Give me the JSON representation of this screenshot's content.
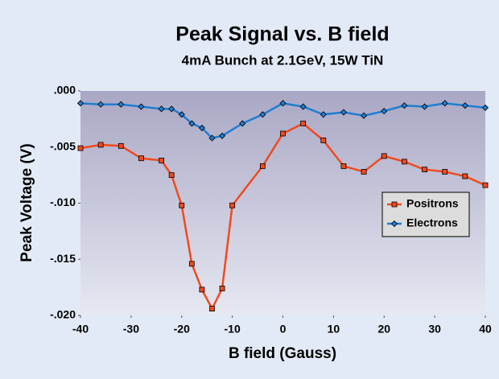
{
  "chart_data": {
    "type": "line",
    "title": "Peak Signal vs. B field",
    "subtitle": "4mA Bunch at 2.1GeV,  15W TiN",
    "xlabel": "B field (Gauss)",
    "ylabel": "Peak Voltage (V)",
    "xlim": [
      -40,
      40
    ],
    "xticks": [
      -40,
      -30,
      -20,
      -10,
      0,
      10,
      20,
      30,
      40
    ],
    "ylim": [
      -0.02,
      0
    ],
    "yticks": [
      {
        "value": 0,
        "label": ".000"
      },
      {
        "value": -0.005,
        "label": "-.005"
      },
      {
        "value": -0.01,
        "label": "-.010"
      },
      {
        "value": -0.015,
        "label": "-.015"
      },
      {
        "value": -0.02,
        "label": "-.020"
      }
    ],
    "legend": "lower right",
    "series": [
      {
        "name": "Positrons",
        "color": "#f04a1e",
        "marker": "square",
        "x": [
          -40,
          -36,
          -32,
          -28,
          -24,
          -22,
          -20,
          -18,
          -16,
          -14,
          -12,
          -10,
          -4,
          0,
          4,
          8,
          12,
          16,
          20,
          24,
          28,
          32,
          36,
          40
        ],
        "values": [
          -0.0051,
          -0.0048,
          -0.0049,
          -0.006,
          -0.0062,
          -0.0075,
          -0.0102,
          -0.0154,
          -0.0177,
          -0.0194,
          -0.0176,
          -0.0102,
          -0.0067,
          -0.0038,
          -0.0029,
          -0.0044,
          -0.0067,
          -0.0072,
          -0.0058,
          -0.0063,
          -0.007,
          -0.0072,
          -0.0076,
          -0.0084
        ]
      },
      {
        "name": "Electrons",
        "color": "#1e7ed2",
        "marker": "diamond",
        "x": [
          -40,
          -36,
          -32,
          -28,
          -24,
          -22,
          -20,
          -18,
          -16,
          -14,
          -12,
          -8,
          -4,
          0,
          4,
          8,
          12,
          16,
          20,
          24,
          28,
          32,
          36,
          40
        ],
        "values": [
          -0.0011,
          -0.0012,
          -0.0012,
          -0.0014,
          -0.0016,
          -0.0016,
          -0.0021,
          -0.0029,
          -0.0033,
          -0.0042,
          -0.004,
          -0.0029,
          -0.0021,
          -0.0011,
          -0.0014,
          -0.0021,
          -0.0019,
          -0.0022,
          -0.0018,
          -0.0013,
          -0.0014,
          -0.0011,
          -0.0013,
          -0.0015
        ]
      }
    ]
  }
}
